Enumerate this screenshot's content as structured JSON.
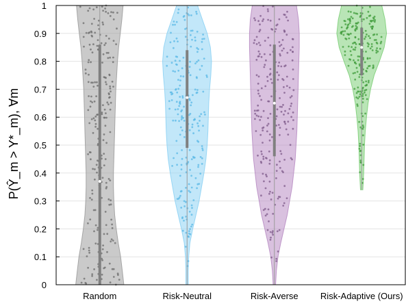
{
  "chart_data": {
    "type": "violin",
    "ylabel": "P(Ŷ_m > Y*_m), ∀m",
    "ylim": [
      0,
      1
    ],
    "yticks": [
      "0",
      "0.1",
      "0.2",
      "0.3",
      "0.4",
      "0.5",
      "0.6",
      "0.7",
      "0.8",
      "0.9",
      "1"
    ],
    "grid": true,
    "categories": [
      "Random",
      "Risk-Neutral",
      "Risk-Averse",
      "Risk-Adaptive (Ours)"
    ],
    "series": [
      {
        "name": "Random",
        "color": "#9e9e9e",
        "median": 0.37,
        "q1": 0.0,
        "q3": 0.86,
        "min": 0.0,
        "max": 1.0,
        "density": [
          [
            0.0,
            0.6
          ],
          [
            0.05,
            0.56
          ],
          [
            0.1,
            0.52
          ],
          [
            0.15,
            0.46
          ],
          [
            0.2,
            0.41
          ],
          [
            0.25,
            0.37
          ],
          [
            0.3,
            0.35
          ],
          [
            0.35,
            0.34
          ],
          [
            0.4,
            0.34
          ],
          [
            0.45,
            0.35
          ],
          [
            0.5,
            0.36
          ],
          [
            0.55,
            0.37
          ],
          [
            0.6,
            0.38
          ],
          [
            0.65,
            0.39
          ],
          [
            0.7,
            0.4
          ],
          [
            0.75,
            0.42
          ],
          [
            0.8,
            0.44
          ],
          [
            0.85,
            0.47
          ],
          [
            0.9,
            0.51
          ],
          [
            0.95,
            0.55
          ],
          [
            1.0,
            0.58
          ]
        ]
      },
      {
        "name": "Risk-Neutral",
        "color": "#8fd3f4",
        "median": 0.67,
        "q1": 0.49,
        "q3": 0.84,
        "min": 0.0,
        "max": 1.0,
        "density": [
          [
            0.0,
            0.03
          ],
          [
            0.05,
            0.03
          ],
          [
            0.1,
            0.04
          ],
          [
            0.15,
            0.07
          ],
          [
            0.2,
            0.14
          ],
          [
            0.25,
            0.22
          ],
          [
            0.3,
            0.3
          ],
          [
            0.35,
            0.36
          ],
          [
            0.4,
            0.42
          ],
          [
            0.45,
            0.47
          ],
          [
            0.5,
            0.5
          ],
          [
            0.55,
            0.52
          ],
          [
            0.6,
            0.53
          ],
          [
            0.65,
            0.54
          ],
          [
            0.7,
            0.56
          ],
          [
            0.75,
            0.59
          ],
          [
            0.8,
            0.61
          ],
          [
            0.85,
            0.58
          ],
          [
            0.9,
            0.5
          ],
          [
            0.95,
            0.38
          ],
          [
            1.0,
            0.26
          ]
        ]
      },
      {
        "name": "Risk-Averse",
        "color": "#b98ec4",
        "median": 0.65,
        "q1": 0.46,
        "q3": 0.86,
        "min": 0.0,
        "max": 1.0,
        "density": [
          [
            0.0,
            0.03
          ],
          [
            0.05,
            0.05
          ],
          [
            0.1,
            0.09
          ],
          [
            0.15,
            0.16
          ],
          [
            0.2,
            0.24
          ],
          [
            0.25,
            0.32
          ],
          [
            0.3,
            0.38
          ],
          [
            0.35,
            0.44
          ],
          [
            0.4,
            0.48
          ],
          [
            0.45,
            0.52
          ],
          [
            0.5,
            0.54
          ],
          [
            0.55,
            0.56
          ],
          [
            0.6,
            0.57
          ],
          [
            0.65,
            0.58
          ],
          [
            0.7,
            0.59
          ],
          [
            0.75,
            0.6
          ],
          [
            0.8,
            0.61
          ],
          [
            0.85,
            0.62
          ],
          [
            0.9,
            0.62
          ],
          [
            0.95,
            0.6
          ],
          [
            1.0,
            0.55
          ]
        ]
      },
      {
        "name": "Risk-Adaptive (Ours)",
        "color": "#7fcf7a",
        "median": 0.85,
        "q1": 0.75,
        "q3": 0.92,
        "min": 0.34,
        "max": 1.0,
        "density": [
          [
            0.34,
            0.03
          ],
          [
            0.4,
            0.05
          ],
          [
            0.45,
            0.06
          ],
          [
            0.5,
            0.07
          ],
          [
            0.55,
            0.09
          ],
          [
            0.6,
            0.12
          ],
          [
            0.65,
            0.16
          ],
          [
            0.7,
            0.22
          ],
          [
            0.75,
            0.31
          ],
          [
            0.8,
            0.44
          ],
          [
            0.85,
            0.56
          ],
          [
            0.9,
            0.62
          ],
          [
            0.95,
            0.58
          ],
          [
            1.0,
            0.5
          ]
        ]
      }
    ]
  }
}
